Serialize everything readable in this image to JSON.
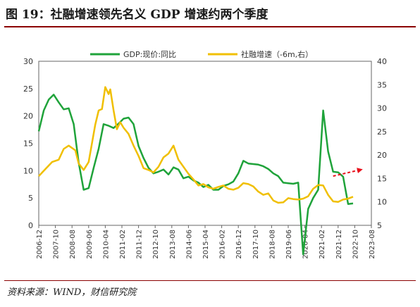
{
  "figure_title": "图 19：社融增速领先名义 GDP 增速约两个季度",
  "source_note": "资料来源：WIND，财信研究院",
  "colors": {
    "gdp": "#1fa33a",
    "tsf": "#f0bf00",
    "arrow": "#e8101b",
    "axis": "#666666",
    "rule": "#8b0000"
  },
  "chart_data": {
    "type": "line",
    "x_labels": [
      "2006-12",
      "2007-10",
      "2008-08",
      "2009-06",
      "2010-04",
      "2011-02",
      "2011-12",
      "2012-10",
      "2013-08",
      "2014-06",
      "2015-04",
      "2016-02",
      "2016-12",
      "2017-10",
      "2018-08",
      "2019-06",
      "2020-04",
      "2021-02",
      "2021-12",
      "2022-10",
      "2023-08"
    ],
    "y_left": {
      "min": 0,
      "max": 30,
      "ticks": [
        0,
        5,
        10,
        15,
        20,
        25,
        30
      ]
    },
    "y_right": {
      "min": 5,
      "max": 40,
      "ticks": [
        5,
        10,
        15,
        20,
        25,
        30,
        35,
        40
      ]
    },
    "legend_position": "top",
    "series": [
      {
        "name": "GDP:现价:同比",
        "axis": "left",
        "points": [
          [
            "2006-12",
            17.2
          ],
          [
            "2007-03",
            21.0
          ],
          [
            "2007-06",
            23.0
          ],
          [
            "2007-09",
            23.9
          ],
          [
            "2007-12",
            22.5
          ],
          [
            "2008-03",
            21.2
          ],
          [
            "2008-06",
            21.4
          ],
          [
            "2008-09",
            18.5
          ],
          [
            "2008-12",
            11.5
          ],
          [
            "2009-03",
            6.5
          ],
          [
            "2009-06",
            6.8
          ],
          [
            "2009-09",
            10.5
          ],
          [
            "2009-12",
            14.0
          ],
          [
            "2010-03",
            18.5
          ],
          [
            "2010-06",
            18.2
          ],
          [
            "2010-09",
            17.8
          ],
          [
            "2010-12",
            18.6
          ],
          [
            "2011-03",
            19.5
          ],
          [
            "2011-06",
            19.7
          ],
          [
            "2011-09",
            18.5
          ],
          [
            "2011-12",
            14.5
          ],
          [
            "2012-03",
            12.3
          ],
          [
            "2012-06",
            10.5
          ],
          [
            "2012-09",
            9.5
          ],
          [
            "2012-12",
            9.8
          ],
          [
            "2013-03",
            10.2
          ],
          [
            "2013-06",
            9.3
          ],
          [
            "2013-09",
            10.6
          ],
          [
            "2013-12",
            10.2
          ],
          [
            "2014-03",
            8.6
          ],
          [
            "2014-06",
            8.9
          ],
          [
            "2014-09",
            8.2
          ],
          [
            "2014-12",
            7.8
          ],
          [
            "2015-03",
            7.0
          ],
          [
            "2015-06",
            7.4
          ],
          [
            "2015-09",
            6.5
          ],
          [
            "2015-12",
            6.5
          ],
          [
            "2016-03",
            7.2
          ],
          [
            "2016-06",
            7.5
          ],
          [
            "2016-09",
            8.0
          ],
          [
            "2016-12",
            9.5
          ],
          [
            "2017-03",
            11.8
          ],
          [
            "2017-06",
            11.3
          ],
          [
            "2017-09",
            11.2
          ],
          [
            "2017-12",
            11.1
          ],
          [
            "2018-03",
            10.8
          ],
          [
            "2018-06",
            10.3
          ],
          [
            "2018-09",
            9.5
          ],
          [
            "2018-12",
            9.0
          ],
          [
            "2019-03",
            7.8
          ],
          [
            "2019-06",
            7.7
          ],
          [
            "2019-09",
            7.6
          ],
          [
            "2019-12",
            7.8
          ],
          [
            "2020-03",
            -5.3
          ],
          [
            "2020-06",
            3.0
          ],
          [
            "2020-09",
            5.0
          ],
          [
            "2020-12",
            6.5
          ],
          [
            "2021-03",
            21.0
          ],
          [
            "2021-06",
            13.5
          ],
          [
            "2021-09",
            9.8
          ],
          [
            "2021-12",
            9.7
          ],
          [
            "2022-03",
            8.9
          ],
          [
            "2022-06",
            3.9
          ],
          [
            "2022-09",
            4.0
          ]
        ]
      },
      {
        "name": "社融增速（-6m,右）",
        "axis": "right",
        "points": [
          [
            "2006-12",
            15.5
          ],
          [
            "2007-04",
            17.0
          ],
          [
            "2007-08",
            18.5
          ],
          [
            "2007-12",
            19.0
          ],
          [
            "2008-03",
            21.3
          ],
          [
            "2008-06",
            22.0
          ],
          [
            "2008-10",
            21.0
          ],
          [
            "2008-12",
            18.2
          ],
          [
            "2009-03",
            16.8
          ],
          [
            "2009-06",
            18.5
          ],
          [
            "2009-10",
            26.5
          ],
          [
            "2009-12",
            29.5
          ],
          [
            "2010-02",
            29.8
          ],
          [
            "2010-04",
            34.5
          ],
          [
            "2010-06",
            33.0
          ],
          [
            "2010-07",
            34.0
          ],
          [
            "2010-09",
            29.5
          ],
          [
            "2010-11",
            25.5
          ],
          [
            "2011-01",
            27.0
          ],
          [
            "2011-03",
            25.8
          ],
          [
            "2011-06",
            24.5
          ],
          [
            "2011-09",
            22.0
          ],
          [
            "2011-12",
            19.8
          ],
          [
            "2012-03",
            17.2
          ],
          [
            "2012-06",
            16.8
          ],
          [
            "2012-09",
            16.3
          ],
          [
            "2012-12",
            17.5
          ],
          [
            "2013-03",
            19.5
          ],
          [
            "2013-06",
            20.3
          ],
          [
            "2013-09",
            22.0
          ],
          [
            "2013-12",
            19.0
          ],
          [
            "2014-03",
            17.5
          ],
          [
            "2014-06",
            16.0
          ],
          [
            "2014-09",
            14.8
          ],
          [
            "2014-12",
            13.5
          ],
          [
            "2015-03",
            13.8
          ],
          [
            "2015-06",
            13.1
          ],
          [
            "2015-09",
            12.8
          ],
          [
            "2015-12",
            13.2
          ],
          [
            "2016-03",
            13.5
          ],
          [
            "2016-06",
            12.8
          ],
          [
            "2016-09",
            12.6
          ],
          [
            "2016-12",
            13.0
          ],
          [
            "2017-03",
            14.0
          ],
          [
            "2017-06",
            13.8
          ],
          [
            "2017-09",
            13.3
          ],
          [
            "2017-12",
            12.2
          ],
          [
            "2018-03",
            11.5
          ],
          [
            "2018-06",
            11.8
          ],
          [
            "2018-09",
            10.3
          ],
          [
            "2018-12",
            9.8
          ],
          [
            "2019-03",
            9.9
          ],
          [
            "2019-06",
            10.8
          ],
          [
            "2019-09",
            10.6
          ],
          [
            "2019-12",
            10.5
          ],
          [
            "2020-03",
            10.7
          ],
          [
            "2020-06",
            11.2
          ],
          [
            "2020-09",
            12.8
          ],
          [
            "2020-12",
            13.6
          ],
          [
            "2021-03",
            13.5
          ],
          [
            "2021-06",
            11.5
          ],
          [
            "2021-09",
            10.1
          ],
          [
            "2021-12",
            10.0
          ],
          [
            "2022-03",
            10.5
          ],
          [
            "2022-06",
            10.7
          ],
          [
            "2022-09",
            11.1
          ]
        ]
      }
    ],
    "annotation": {
      "type": "arrow",
      "from": [
        "2021-09",
        9.0
      ],
      "to": [
        "2023-02",
        10.2
      ]
    }
  }
}
